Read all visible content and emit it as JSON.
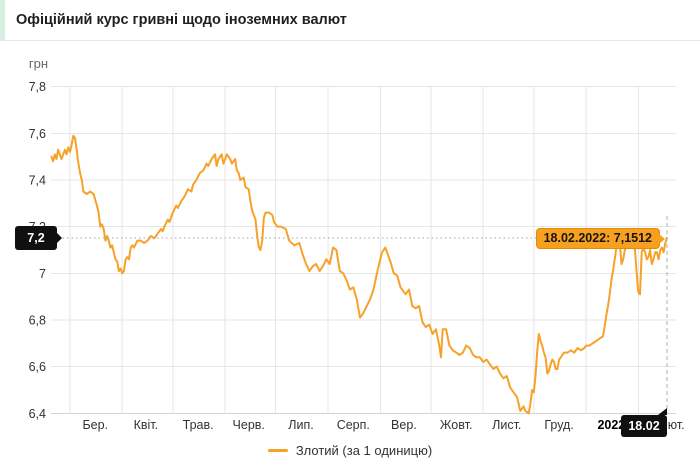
{
  "header": {
    "title": "Офіційний курс гривні щодо іноземних валют"
  },
  "colors": {
    "accent_stripe": "#d6efe1",
    "line": "#f7a128",
    "tooltip_bg": "#f7a01f",
    "tooltip_border": "#dd8e04",
    "badge_bg": "#101010",
    "grid": "#e6e6e6",
    "axis_line": "#d4d4d4",
    "tick_text": "#333333"
  },
  "chart_data": {
    "type": "line",
    "unit_label": "грн",
    "ylim": [
      6.4,
      7.8
    ],
    "grid": true,
    "y_ticks": [
      {
        "v": 7.8,
        "label": "7,8"
      },
      {
        "v": 7.6,
        "label": "7,6"
      },
      {
        "v": 7.4,
        "label": "7,4"
      },
      {
        "v": 7.2,
        "label": "7,2"
      },
      {
        "v": 7.0,
        "label": "7"
      },
      {
        "v": 6.8,
        "label": "6,8"
      },
      {
        "v": 6.6,
        "label": "6,6"
      },
      {
        "v": 6.4,
        "label": "6,4"
      }
    ],
    "x_month_gridline_days": [
      11,
      42,
      72,
      103,
      133,
      164,
      195,
      225,
      256,
      286,
      317,
      348
    ],
    "x_labels": [
      {
        "day": 26,
        "label": "Бер.",
        "bold": false
      },
      {
        "day": 56,
        "label": "Квіт.",
        "bold": false
      },
      {
        "day": 87,
        "label": "Трав.",
        "bold": false
      },
      {
        "day": 117,
        "label": "Черв.",
        "bold": false
      },
      {
        "day": 148,
        "label": "Лип.",
        "bold": false
      },
      {
        "day": 179,
        "label": "Серп.",
        "bold": false
      },
      {
        "day": 209,
        "label": "Вер.",
        "bold": false
      },
      {
        "day": 240,
        "label": "Жовт.",
        "bold": false
      },
      {
        "day": 270,
        "label": "Лист.",
        "bold": false
      },
      {
        "day": 301,
        "label": "Груд.",
        "bold": false
      },
      {
        "day": 332,
        "label": "2022",
        "bold": true
      },
      {
        "day": 368,
        "label": "Лют.",
        "bold": false
      }
    ],
    "legend": {
      "label": "Злотий (за 1 одиницю)",
      "position": "bottom"
    },
    "tooltip": {
      "text": "18.02.2022: 7,1512"
    },
    "crosshair": {
      "day": 365,
      "value": 7.1512,
      "y_label": "7,2",
      "x_label": "18.02"
    },
    "series": [
      {
        "name": "Злотий (за 1 одиницю)",
        "color": "#f7a128",
        "points": [
          [
            0,
            7.5
          ],
          [
            1,
            7.48
          ],
          [
            2,
            7.51
          ],
          [
            3,
            7.49
          ],
          [
            4,
            7.53
          ],
          [
            5,
            7.51
          ],
          [
            6,
            7.49
          ],
          [
            8,
            7.53
          ],
          [
            9,
            7.51
          ],
          [
            10,
            7.54
          ],
          [
            11,
            7.52
          ],
          [
            12,
            7.55
          ],
          [
            13,
            7.59
          ],
          [
            14,
            7.58
          ],
          [
            15,
            7.53
          ],
          [
            16,
            7.47
          ],
          [
            17,
            7.43
          ],
          [
            18,
            7.4
          ],
          [
            19,
            7.35
          ],
          [
            21,
            7.34
          ],
          [
            23,
            7.35
          ],
          [
            25,
            7.34
          ],
          [
            27,
            7.29
          ],
          [
            28,
            7.26
          ],
          [
            29,
            7.2
          ],
          [
            30,
            7.21
          ],
          [
            31,
            7.19
          ],
          [
            32,
            7.14
          ],
          [
            33,
            7.16
          ],
          [
            34,
            7.14
          ],
          [
            35,
            7.11
          ],
          [
            36,
            7.12
          ],
          [
            37,
            7.09
          ],
          [
            38,
            7.06
          ],
          [
            39,
            7.05
          ],
          [
            40,
            7.01
          ],
          [
            41,
            7.02
          ],
          [
            42,
            7.0
          ],
          [
            43,
            7.01
          ],
          [
            44,
            7.06
          ],
          [
            45,
            7.07
          ],
          [
            46,
            7.06
          ],
          [
            47,
            7.11
          ],
          [
            48,
            7.12
          ],
          [
            49,
            7.11
          ],
          [
            51,
            7.14
          ],
          [
            53,
            7.14
          ],
          [
            55,
            7.13
          ],
          [
            57,
            7.14
          ],
          [
            59,
            7.16
          ],
          [
            61,
            7.15
          ],
          [
            63,
            7.17
          ],
          [
            65,
            7.19
          ],
          [
            66,
            7.18
          ],
          [
            67,
            7.2
          ],
          [
            69,
            7.23
          ],
          [
            70,
            7.22
          ],
          [
            72,
            7.26
          ],
          [
            74,
            7.29
          ],
          [
            75,
            7.28
          ],
          [
            77,
            7.31
          ],
          [
            79,
            7.33
          ],
          [
            81,
            7.36
          ],
          [
            83,
            7.35
          ],
          [
            84,
            7.38
          ],
          [
            86,
            7.4
          ],
          [
            88,
            7.43
          ],
          [
            90,
            7.44
          ],
          [
            92,
            7.47
          ],
          [
            93,
            7.46
          ],
          [
            95,
            7.49
          ],
          [
            97,
            7.51
          ],
          [
            98,
            7.46
          ],
          [
            99,
            7.49
          ],
          [
            101,
            7.51
          ],
          [
            102,
            7.47
          ],
          [
            103,
            7.49
          ],
          [
            104,
            7.51
          ],
          [
            106,
            7.49
          ],
          [
            107,
            7.47
          ],
          [
            109,
            7.49
          ],
          [
            110,
            7.44
          ],
          [
            111,
            7.43
          ],
          [
            112,
            7.4
          ],
          [
            114,
            7.41
          ],
          [
            115,
            7.37
          ],
          [
            117,
            7.36
          ],
          [
            118,
            7.31
          ],
          [
            119,
            7.27
          ],
          [
            120,
            7.25
          ],
          [
            121,
            7.23
          ],
          [
            122,
            7.16
          ],
          [
            123,
            7.11
          ],
          [
            124,
            7.1
          ],
          [
            125,
            7.14
          ],
          [
            126,
            7.24
          ],
          [
            127,
            7.26
          ],
          [
            129,
            7.26
          ],
          [
            131,
            7.25
          ],
          [
            132,
            7.22
          ],
          [
            133,
            7.21
          ],
          [
            134,
            7.2
          ],
          [
            136,
            7.2
          ],
          [
            139,
            7.19
          ],
          [
            141,
            7.14
          ],
          [
            144,
            7.12
          ],
          [
            147,
            7.13
          ],
          [
            149,
            7.08
          ],
          [
            151,
            7.04
          ],
          [
            153,
            7.01
          ],
          [
            155,
            7.03
          ],
          [
            157,
            7.04
          ],
          [
            159,
            7.01
          ],
          [
            161,
            7.03
          ],
          [
            163,
            7.06
          ],
          [
            165,
            7.04
          ],
          [
            167,
            7.11
          ],
          [
            169,
            7.1
          ],
          [
            171,
            7.01
          ],
          [
            173,
            7.0
          ],
          [
            175,
            6.97
          ],
          [
            177,
            6.93
          ],
          [
            179,
            6.94
          ],
          [
            181,
            6.89
          ],
          [
            183,
            6.81
          ],
          [
            185,
            6.83
          ],
          [
            187,
            6.86
          ],
          [
            189,
            6.89
          ],
          [
            191,
            6.93
          ],
          [
            193,
            7.0
          ],
          [
            196,
            7.09
          ],
          [
            198,
            7.11
          ],
          [
            201,
            7.05
          ],
          [
            203,
            7.0
          ],
          [
            205,
            6.99
          ],
          [
            207,
            6.94
          ],
          [
            210,
            6.91
          ],
          [
            212,
            6.93
          ],
          [
            214,
            6.86
          ],
          [
            216,
            6.85
          ],
          [
            218,
            6.86
          ],
          [
            220,
            6.79
          ],
          [
            222,
            6.77
          ],
          [
            224,
            6.78
          ],
          [
            226,
            6.74
          ],
          [
            228,
            6.76
          ],
          [
            230,
            6.69
          ],
          [
            231,
            6.64
          ],
          [
            232,
            6.76
          ],
          [
            234,
            6.76
          ],
          [
            236,
            6.69
          ],
          [
            238,
            6.67
          ],
          [
            240,
            6.66
          ],
          [
            242,
            6.65
          ],
          [
            244,
            6.66
          ],
          [
            246,
            6.69
          ],
          [
            248,
            6.68
          ],
          [
            250,
            6.65
          ],
          [
            252,
            6.64
          ],
          [
            254,
            6.64
          ],
          [
            256,
            6.62
          ],
          [
            258,
            6.63
          ],
          [
            260,
            6.61
          ],
          [
            262,
            6.59
          ],
          [
            264,
            6.6
          ],
          [
            266,
            6.57
          ],
          [
            268,
            6.55
          ],
          [
            270,
            6.56
          ],
          [
            272,
            6.51
          ],
          [
            274,
            6.49
          ],
          [
            276,
            6.47
          ],
          [
            278,
            6.41
          ],
          [
            280,
            6.43
          ],
          [
            281,
            6.41
          ],
          [
            283,
            6.4
          ],
          [
            284,
            6.44
          ],
          [
            285,
            6.5
          ],
          [
            286,
            6.49
          ],
          [
            287,
            6.56
          ],
          [
            288,
            6.66
          ],
          [
            289,
            6.74
          ],
          [
            290,
            6.71
          ],
          [
            291,
            6.69
          ],
          [
            292,
            6.66
          ],
          [
            293,
            6.64
          ],
          [
            294,
            6.57
          ],
          [
            295,
            6.58
          ],
          [
            296,
            6.61
          ],
          [
            297,
            6.63
          ],
          [
            298,
            6.62
          ],
          [
            299,
            6.59
          ],
          [
            300,
            6.59
          ],
          [
            301,
            6.63
          ],
          [
            302,
            6.64
          ],
          [
            304,
            6.66
          ],
          [
            306,
            6.66
          ],
          [
            308,
            6.67
          ],
          [
            310,
            6.66
          ],
          [
            312,
            6.68
          ],
          [
            314,
            6.67
          ],
          [
            316,
            6.68
          ],
          [
            317,
            6.69
          ],
          [
            319,
            6.69
          ],
          [
            321,
            6.7
          ],
          [
            323,
            6.71
          ],
          [
            325,
            6.72
          ],
          [
            327,
            6.73
          ],
          [
            328,
            6.77
          ],
          [
            329,
            6.82
          ],
          [
            330,
            6.86
          ],
          [
            331,
            6.91
          ],
          [
            332,
            6.97
          ],
          [
            333,
            7.01
          ],
          [
            334,
            7.06
          ],
          [
            335,
            7.11
          ],
          [
            336,
            7.12
          ],
          [
            337,
            7.13
          ],
          [
            338,
            7.04
          ],
          [
            339,
            7.06
          ],
          [
            340,
            7.1
          ],
          [
            341,
            7.12
          ],
          [
            342,
            7.13
          ],
          [
            343,
            7.12
          ],
          [
            344,
            7.13
          ],
          [
            345,
            7.12
          ],
          [
            346,
            7.1
          ],
          [
            347,
            7.0
          ],
          [
            348,
            6.92
          ],
          [
            349,
            6.91
          ],
          [
            350,
            7.09
          ],
          [
            351,
            7.11
          ],
          [
            352,
            7.09
          ],
          [
            353,
            7.06
          ],
          [
            354,
            7.07
          ],
          [
            355,
            7.1
          ],
          [
            356,
            7.04
          ],
          [
            357,
            7.06
          ],
          [
            358,
            7.09
          ],
          [
            359,
            7.09
          ],
          [
            360,
            7.06
          ],
          [
            361,
            7.1
          ],
          [
            362,
            7.11
          ],
          [
            363,
            7.09
          ],
          [
            364,
            7.13
          ],
          [
            365,
            7.1512
          ]
        ]
      }
    ]
  }
}
